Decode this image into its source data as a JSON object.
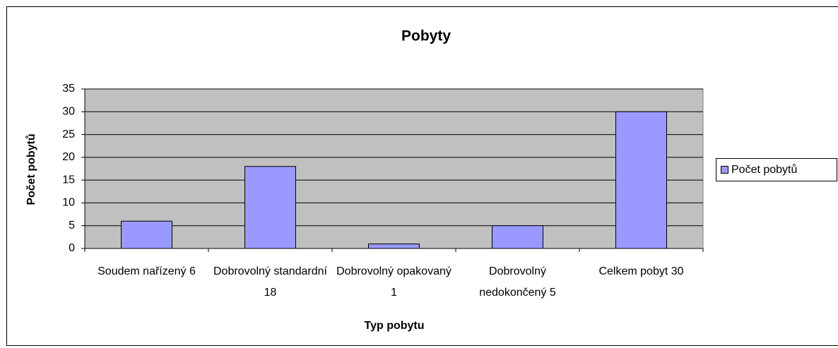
{
  "chart_data": {
    "type": "bar",
    "title": "Pobyty",
    "x_label": "Typ pobytu",
    "y_label": "Počet pobytů",
    "categories": [
      "Soudem nařízený 6",
      "Dobrovolný standardní 18",
      "Dobrovolný opakovaný 1",
      "Dobrovolný nedokončený 5",
      "Celkem pobyt 30"
    ],
    "series": [
      {
        "name": "Počet pobytů",
        "color": "#9999ff",
        "values": [
          6,
          18,
          1,
          5,
          30
        ]
      }
    ],
    "ylim": [
      0,
      35
    ],
    "yticks": [
      0,
      5,
      10,
      15,
      20,
      25,
      30,
      35
    ],
    "grid": true,
    "legend": "right"
  }
}
